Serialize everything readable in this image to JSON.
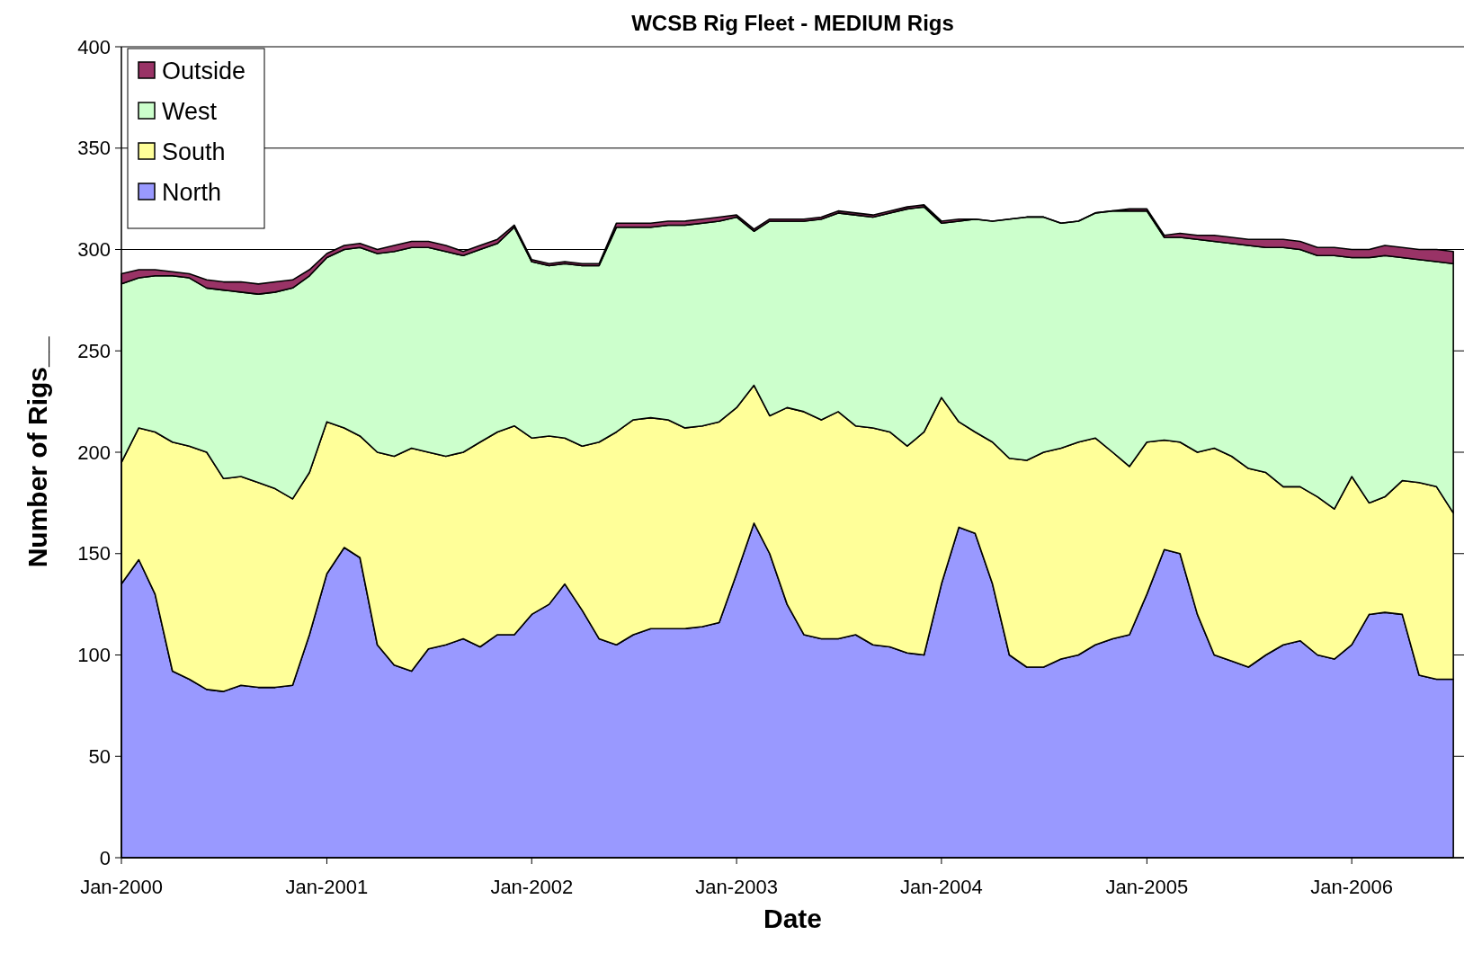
{
  "chart_data": {
    "type": "area",
    "stacked": true,
    "title": "WCSB Rig Fleet - MEDIUM Rigs",
    "xlabel": "Date",
    "ylabel": "Number of Rigs__",
    "x": [
      "2000-01",
      "2000-02",
      "2000-03",
      "2000-04",
      "2000-05",
      "2000-06",
      "2000-07",
      "2000-08",
      "2000-09",
      "2000-10",
      "2000-11",
      "2000-12",
      "2001-01",
      "2001-02",
      "2001-03",
      "2001-04",
      "2001-05",
      "2001-06",
      "2001-07",
      "2001-08",
      "2001-09",
      "2001-10",
      "2001-11",
      "2001-12",
      "2002-01",
      "2002-02",
      "2002-03",
      "2002-04",
      "2002-05",
      "2002-06",
      "2002-07",
      "2002-08",
      "2002-09",
      "2002-10",
      "2002-11",
      "2002-12",
      "2003-01",
      "2003-02",
      "2003-03",
      "2003-04",
      "2003-05",
      "2003-06",
      "2003-07",
      "2003-08",
      "2003-09",
      "2003-10",
      "2003-11",
      "2003-12",
      "2004-01",
      "2004-02",
      "2004-03",
      "2004-04",
      "2004-05",
      "2004-06",
      "2004-07",
      "2004-08",
      "2004-09",
      "2004-10",
      "2004-11",
      "2004-12",
      "2005-01",
      "2005-02",
      "2005-03",
      "2005-04",
      "2005-05",
      "2005-06",
      "2005-07",
      "2005-08",
      "2005-09",
      "2005-10",
      "2005-11",
      "2005-12",
      "2006-01",
      "2006-02",
      "2006-03",
      "2006-04",
      "2006-05",
      "2006-06",
      "2006-07"
    ],
    "series": [
      {
        "name": "North",
        "color": "#9999ff",
        "values": [
          135,
          147,
          130,
          92,
          88,
          83,
          82,
          85,
          84,
          84,
          85,
          110,
          140,
          153,
          148,
          105,
          95,
          92,
          103,
          105,
          108,
          104,
          110,
          110,
          120,
          125,
          135,
          122,
          108,
          105,
          110,
          113,
          113,
          113,
          114,
          116,
          140,
          165,
          150,
          125,
          110,
          108,
          108,
          110,
          105,
          104,
          101,
          100,
          135,
          163,
          160,
          135,
          100,
          94,
          94,
          98,
          100,
          105,
          108,
          110,
          130,
          152,
          150,
          120,
          100,
          97,
          94,
          100,
          105,
          107,
          100,
          98,
          105,
          120,
          121,
          120,
          90,
          88,
          88
        ]
      },
      {
        "name": "South",
        "color": "#ffff99",
        "values": [
          60,
          65,
          80,
          113,
          115,
          117,
          105,
          103,
          101,
          98,
          92,
          80,
          75,
          59,
          60,
          95,
          103,
          110,
          97,
          93,
          92,
          101,
          100,
          103,
          87,
          83,
          72,
          81,
          97,
          105,
          106,
          104,
          103,
          99,
          99,
          99,
          82,
          68,
          68,
          97,
          110,
          108,
          112,
          103,
          107,
          106,
          102,
          110,
          92,
          52,
          50,
          70,
          97,
          102,
          106,
          104,
          105,
          102,
          92,
          83,
          75,
          54,
          55,
          80,
          102,
          101,
          98,
          90,
          78,
          76,
          78,
          74,
          83,
          55,
          57,
          66,
          95,
          95,
          82
        ]
      },
      {
        "name": "West",
        "color": "#ccffcc",
        "values": [
          88,
          74,
          77,
          82,
          83,
          81,
          93,
          91,
          93,
          97,
          104,
          97,
          81,
          88,
          93,
          98,
          101,
          99,
          101,
          101,
          97,
          95,
          93,
          98,
          87,
          84,
          86,
          89,
          87,
          101,
          95,
          94,
          96,
          100,
          100,
          99,
          94,
          76,
          96,
          92,
          94,
          99,
          98,
          104,
          104,
          108,
          117,
          111,
          86,
          99,
          105,
          109,
          118,
          120,
          116,
          111,
          109,
          111,
          119,
          126,
          114,
          100,
          101,
          105,
          102,
          105,
          110,
          111,
          118,
          117,
          119,
          125,
          108,
          121,
          119,
          110,
          110,
          111,
          123
        ]
      },
      {
        "name": "Outside",
        "color": "#993366",
        "values": [
          5,
          4,
          3,
          2,
          2,
          4,
          4,
          5,
          5,
          5,
          4,
          3,
          2,
          2,
          2,
          2,
          3,
          3,
          3,
          3,
          2,
          2,
          2,
          1,
          1,
          1,
          1,
          1,
          1,
          2,
          2,
          2,
          2,
          2,
          2,
          2,
          1,
          1,
          1,
          1,
          1,
          1,
          1,
          1,
          1,
          1,
          1,
          1,
          1,
          1,
          0,
          0,
          0,
          0,
          0,
          0,
          0,
          0,
          0,
          1,
          1,
          1,
          2,
          2,
          3,
          3,
          3,
          4,
          4,
          4,
          4,
          4,
          4,
          4,
          5,
          5,
          5,
          6,
          6
        ]
      }
    ],
    "xlim": [
      "2000-01-01",
      "2006-07-20"
    ],
    "xticks": [
      {
        "value": "2000-01-01",
        "label": "Jan-2000"
      },
      {
        "value": "2001-01-01",
        "label": "Jan-2001"
      },
      {
        "value": "2002-01-01",
        "label": "Jan-2002"
      },
      {
        "value": "2003-01-01",
        "label": "Jan-2003"
      },
      {
        "value": "2004-01-01",
        "label": "Jan-2004"
      },
      {
        "value": "2005-01-01",
        "label": "Jan-2005"
      },
      {
        "value": "2006-01-01",
        "label": "Jan-2006"
      }
    ],
    "ylim": [
      0,
      400
    ],
    "yticks": [
      0,
      50,
      100,
      150,
      200,
      250,
      300,
      350,
      400
    ],
    "grid": "y",
    "legend": "top left"
  }
}
